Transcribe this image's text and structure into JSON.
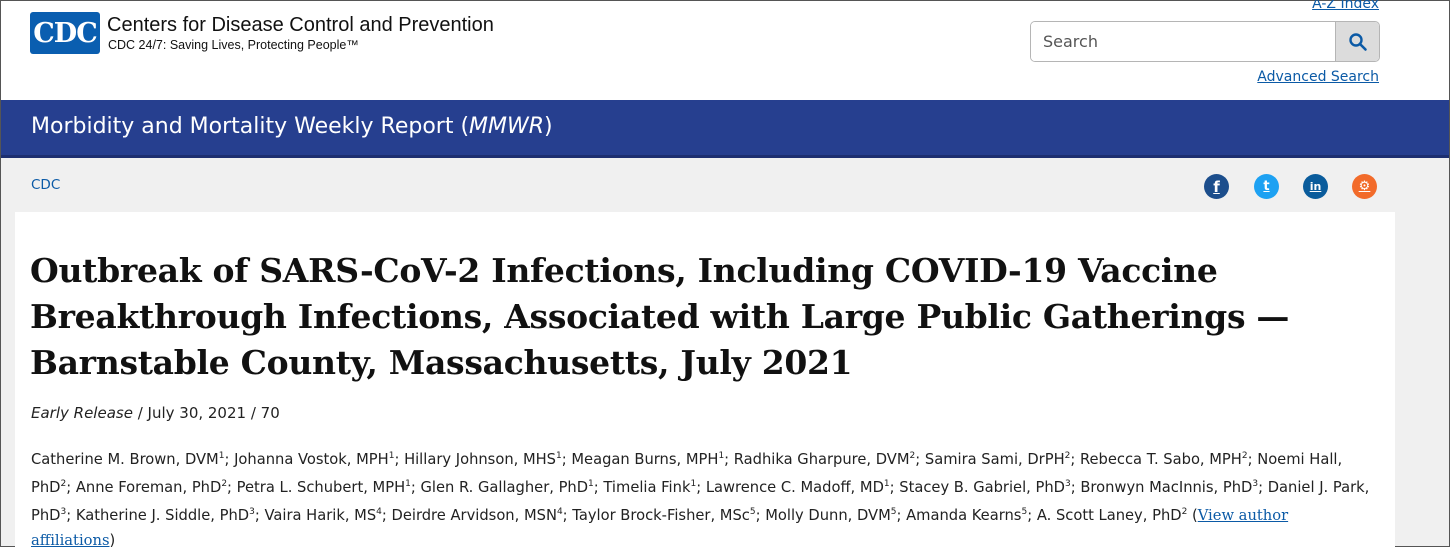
{
  "header": {
    "logo_text": "CDC",
    "org_name": "Centers for Disease Control and Prevention",
    "tagline": "CDC 24/7: Saving Lives, Protecting People™",
    "az_index": "A-Z Index",
    "search_placeholder": "Search",
    "advanced_search": "Advanced Search"
  },
  "banner": {
    "title_prefix": "Morbidity and Mortality Weekly Report (",
    "title_abbrev": "MMWR",
    "title_suffix": ")"
  },
  "breadcrumb": "CDC",
  "social": [
    {
      "icon": "facebook-icon",
      "glyph": "f",
      "color": "#1c4e8c"
    },
    {
      "icon": "twitter-icon",
      "glyph": "t",
      "color": "#1da1f2"
    },
    {
      "icon": "linkedin-icon",
      "glyph": "in",
      "color": "#0a5c9c"
    },
    {
      "icon": "syndicate-icon",
      "glyph": "⚙",
      "color": "#f26b2a"
    }
  ],
  "article": {
    "title": "Outbreak of SARS-CoV-2 Infections, Including COVID-19 Vaccine Breakthrough Infections, Associated with Large Public Gatherings — Barnstable County, Massachusetts, July 2021",
    "release_label": "Early Release",
    "release_rest": " / July 30, 2021 / 70",
    "authors": [
      {
        "name": "Catherine M. Brown, DVM",
        "aff": "1"
      },
      {
        "name": "Johanna Vostok, MPH",
        "aff": "1"
      },
      {
        "name": "Hillary Johnson, MHS",
        "aff": "1"
      },
      {
        "name": "Meagan Burns, MPH",
        "aff": "1"
      },
      {
        "name": "Radhika Gharpure, DVM",
        "aff": "2"
      },
      {
        "name": "Samira Sami, DrPH",
        "aff": "2"
      },
      {
        "name": "Rebecca T. Sabo, MPH",
        "aff": "2"
      },
      {
        "name": "Noemi Hall, PhD",
        "aff": "2"
      },
      {
        "name": "Anne Foreman, PhD",
        "aff": "2"
      },
      {
        "name": "Petra L. Schubert, MPH",
        "aff": "1"
      },
      {
        "name": "Glen R. Gallagher, PhD",
        "aff": "1"
      },
      {
        "name": "Timelia Fink",
        "aff": "1"
      },
      {
        "name": "Lawrence C. Madoff, MD",
        "aff": "1"
      },
      {
        "name": "Stacey B. Gabriel, PhD",
        "aff": "3"
      },
      {
        "name": "Bronwyn MacInnis, PhD",
        "aff": "3"
      },
      {
        "name": "Daniel J. Park, PhD",
        "aff": "3"
      },
      {
        "name": "Katherine J. Siddle, PhD",
        "aff": "3"
      },
      {
        "name": "Vaira Harik, MS",
        "aff": "4"
      },
      {
        "name": "Deirdre Arvidson, MSN",
        "aff": "4"
      },
      {
        "name": "Taylor Brock-Fisher, MSc",
        "aff": "5"
      },
      {
        "name": "Molly Dunn, DVM",
        "aff": "5"
      },
      {
        "name": "Amanda Kearns",
        "aff": "5"
      },
      {
        "name": "A. Scott Laney, PhD",
        "aff": "2"
      }
    ],
    "affiliations_link": "View author affiliations"
  }
}
